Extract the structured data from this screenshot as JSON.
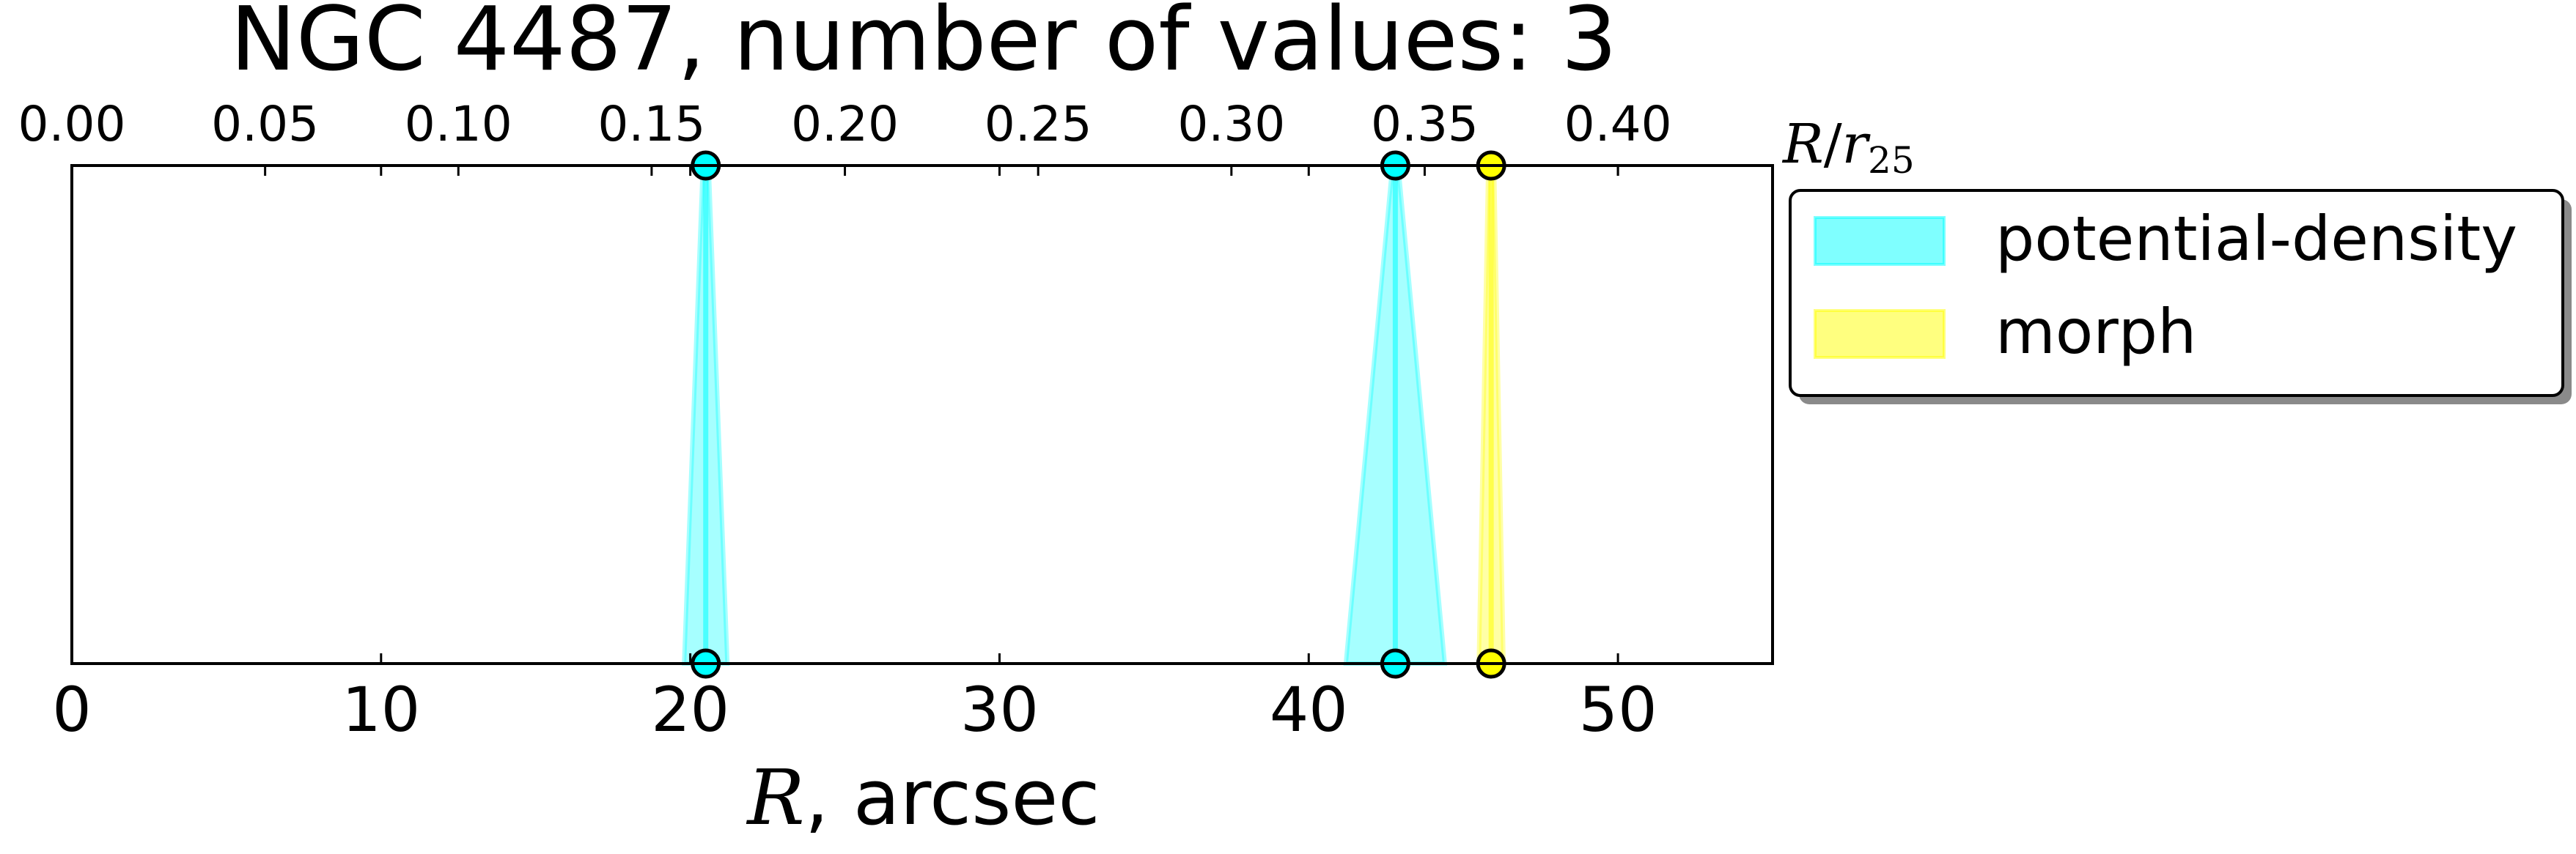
{
  "chart_data": {
    "type": "area",
    "title": "NGC 4487, number of values: 3",
    "xlabel_var": "R",
    "xlabel_unit": ", arcsec",
    "top_axis_label_var": "R",
    "top_axis_label_sep": "/",
    "top_axis_label_base": "r",
    "top_axis_label_sub": "25",
    "xlim": [
      0,
      55
    ],
    "xticks": [
      0,
      10,
      20,
      30,
      40,
      50
    ],
    "top_xlim": [
      0,
      0.44
    ],
    "top_xticks": [
      "0.00",
      "0.05",
      "0.10",
      "0.15",
      "0.20",
      "0.25",
      "0.30",
      "0.35",
      "0.40"
    ],
    "grid": false,
    "legend_position": "outside-right-top",
    "series": [
      {
        "name": "potential-density",
        "color": "#00ffff",
        "values": [
          {
            "x": 20.5,
            "err_low": 0.7,
            "err_high": 0.7
          },
          {
            "x": 42.8,
            "err_low": 1.6,
            "err_high": 1.6
          }
        ]
      },
      {
        "name": "morph",
        "color": "#ffff00",
        "values": [
          {
            "x": 45.9,
            "err_low": 0.4,
            "err_high": 0.4
          }
        ]
      }
    ]
  }
}
